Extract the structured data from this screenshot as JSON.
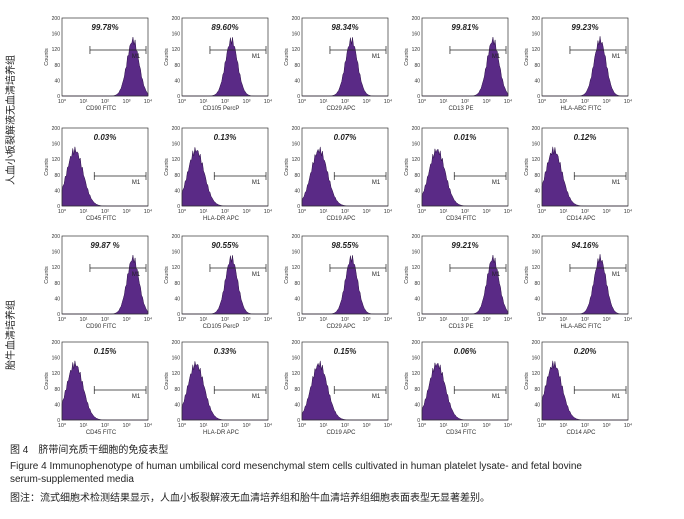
{
  "figure": {
    "groups": [
      "人血小板裂解液无血清培养组",
      "胎牛血清培养组"
    ],
    "axis": {
      "y_label": "Counts",
      "y_ticks": [
        "0",
        "40",
        "80",
        "120",
        "160",
        "200"
      ],
      "x_ticks": [
        "10⁰",
        "10¹",
        "10²",
        "10³",
        "10⁴"
      ],
      "gate": "M1"
    },
    "rows": [
      [
        {
          "percent": "99.78%",
          "marker": "CD90 FITC"
        },
        {
          "percent": "89.60%",
          "marker": "CD105 PercP"
        },
        {
          "percent": "98.34%",
          "marker": "CD29 APC"
        },
        {
          "percent": "99.81%",
          "marker": "CD13 PE"
        },
        {
          "percent": "99.23%",
          "marker": "HLA-ABC FITC"
        }
      ],
      [
        {
          "percent": "0.03%",
          "marker": "CD45 FITC"
        },
        {
          "percent": "0.13%",
          "marker": "HLA-DR APC"
        },
        {
          "percent": "0.07%",
          "marker": "CD19 APC"
        },
        {
          "percent": "0.01%",
          "marker": "CD34 FITC"
        },
        {
          "percent": "0.12%",
          "marker": "CD14 APC"
        }
      ],
      [
        {
          "percent": "99.87 %",
          "marker": "CD90 FITC"
        },
        {
          "percent": "90.55%",
          "marker": "CD105 PercP"
        },
        {
          "percent": "98.55%",
          "marker": "CD29 APC"
        },
        {
          "percent": "99.21%",
          "marker": "CD13 PE"
        },
        {
          "percent": "94.16%",
          "marker": "HLA-ABC FITC"
        }
      ],
      [
        {
          "percent": "0.15%",
          "marker": "CD45 FITC"
        },
        {
          "percent": "0.33%",
          "marker": "HLA-DR APC"
        },
        {
          "percent": "0.15%",
          "marker": "CD19 APC"
        },
        {
          "percent": "0.06%",
          "marker": "CD34 FITC"
        },
        {
          "percent": "0.20%",
          "marker": "CD14 APC"
        }
      ]
    ]
  },
  "caption": {
    "cn_title": "图 4　脐带间充质干细胞的免疫表型",
    "en_title": "Figure 4    Immunophenotype of human umbilical cord mesenchymal stem cells cultivated in human platelet lysate- and fetal bovine serum-supplemented media",
    "note": "图注：流式细胞术检测结果显示，人血小板裂解液无血清培养组和胎牛血清培养组细胞表面表型无显著差别。"
  }
}
